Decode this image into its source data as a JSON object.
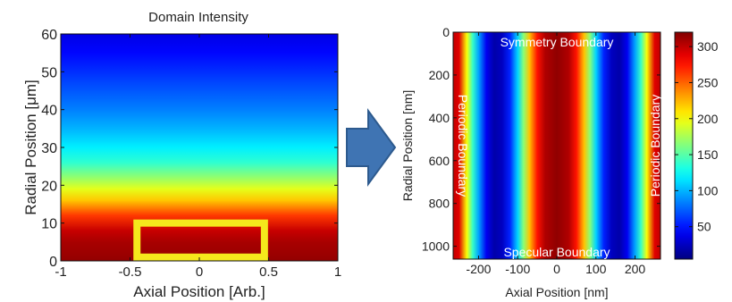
{
  "arrow_color": "#3f74b3",
  "highlight_color": "#f5e81c",
  "chart_data": [
    {
      "type": "heatmap",
      "title": "Domain Intensity",
      "xlabel": "Axial Position [Arb.]",
      "ylabel": "Radial Position [μm]",
      "xlim": [
        -1,
        1
      ],
      "ylim": [
        0,
        60
      ],
      "x_ticks": [
        "-1",
        "-0.5",
        "0",
        "0.5",
        "1"
      ],
      "y_ticks": [
        "0",
        "10",
        "20",
        "30",
        "40",
        "50",
        "60"
      ],
      "colormap": "jet",
      "intensity_varies_along": "y",
      "normalized_profile": [
        {
          "y": 0,
          "v": 0.98
        },
        {
          "y": 5,
          "v": 0.96
        },
        {
          "y": 8,
          "v": 0.93
        },
        {
          "y": 12,
          "v": 0.82
        },
        {
          "y": 16,
          "v": 0.68
        },
        {
          "y": 19,
          "v": 0.6
        },
        {
          "y": 22,
          "v": 0.52
        },
        {
          "y": 26,
          "v": 0.42
        },
        {
          "y": 30,
          "v": 0.36
        },
        {
          "y": 35,
          "v": 0.3
        },
        {
          "y": 40,
          "v": 0.25
        },
        {
          "y": 45,
          "v": 0.21
        },
        {
          "y": 50,
          "v": 0.17
        },
        {
          "y": 55,
          "v": 0.13
        },
        {
          "y": 60,
          "v": 0.1
        }
      ],
      "highlight_box": {
        "x": [
          -0.45,
          0.47
        ],
        "y": [
          1,
          10
        ]
      }
    },
    {
      "type": "heatmap",
      "xlabel": "Axial Position [nm]",
      "ylabel": "Radial Position [nm]",
      "xlim": [
        -265,
        265
      ],
      "ylim": [
        0,
        1060
      ],
      "y_inverted": true,
      "x_ticks": [
        "-200",
        "-100",
        "0",
        "100",
        "200"
      ],
      "y_ticks": [
        "0",
        "200",
        "400",
        "600",
        "800",
        "1000"
      ],
      "colormap": "jet",
      "intensity_varies_along": "x",
      "profile": [
        {
          "x": -265,
          "v": 300
        },
        {
          "x": -250,
          "v": 290
        },
        {
          "x": -230,
          "v": 200
        },
        {
          "x": -215,
          "v": 140
        },
        {
          "x": -200,
          "v": 95
        },
        {
          "x": -180,
          "v": 40
        },
        {
          "x": -160,
          "v": 18
        },
        {
          "x": -140,
          "v": 25
        },
        {
          "x": -120,
          "v": 55
        },
        {
          "x": -100,
          "v": 110
        },
        {
          "x": -85,
          "v": 165
        },
        {
          "x": -70,
          "v": 220
        },
        {
          "x": -50,
          "v": 275
        },
        {
          "x": -30,
          "v": 305
        },
        {
          "x": 0,
          "v": 315
        },
        {
          "x": 30,
          "v": 305
        },
        {
          "x": 50,
          "v": 275
        },
        {
          "x": 70,
          "v": 220
        },
        {
          "x": 85,
          "v": 165
        },
        {
          "x": 100,
          "v": 110
        },
        {
          "x": 120,
          "v": 55
        },
        {
          "x": 140,
          "v": 25
        },
        {
          "x": 160,
          "v": 18
        },
        {
          "x": 180,
          "v": 40
        },
        {
          "x": 200,
          "v": 95
        },
        {
          "x": 215,
          "v": 140
        },
        {
          "x": 230,
          "v": 200
        },
        {
          "x": 250,
          "v": 290
        },
        {
          "x": 265,
          "v": 300
        }
      ],
      "colorbar": {
        "range": [
          5,
          320
        ],
        "ticks": [
          "50",
          "100",
          "150",
          "200",
          "250",
          "300"
        ]
      },
      "annotations": {
        "top": "Symmetry Boundary",
        "bottom": "Specular Boundary",
        "left": "Periodic Boundary",
        "right": "Periodic Boundary"
      }
    }
  ]
}
